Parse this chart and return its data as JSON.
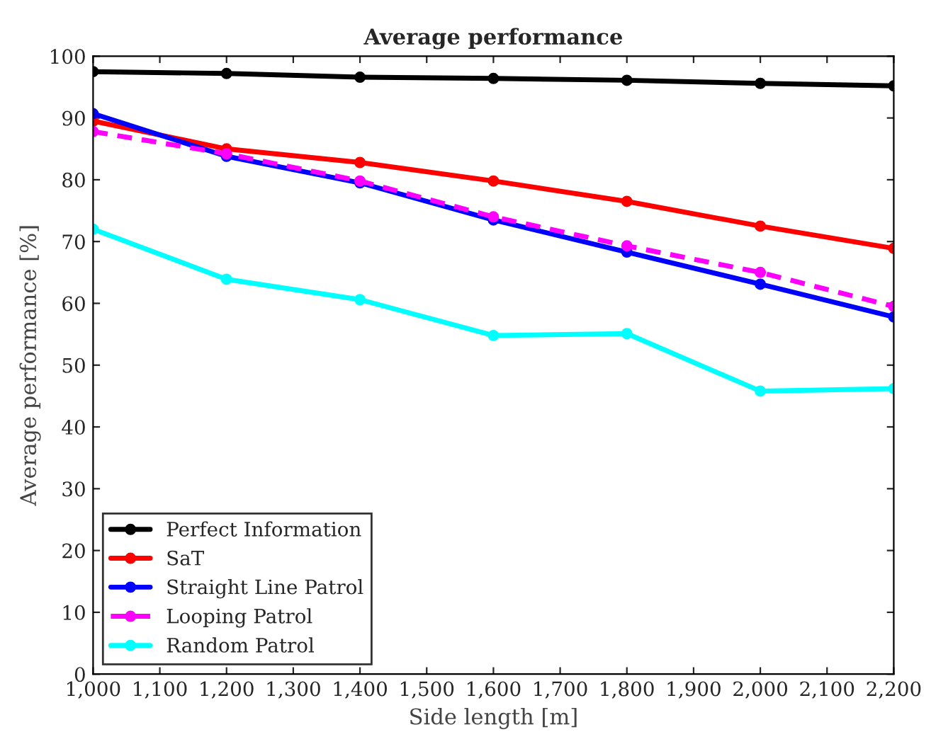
{
  "chart_data": {
    "type": "line",
    "title": "Average performance",
    "xlabel": "Side length [m]",
    "ylabel": "Average performance [%]",
    "x": [
      1000,
      1200,
      1400,
      1600,
      1800,
      2000,
      2200
    ],
    "series": [
      {
        "name": "Perfect Information",
        "color": "#000000",
        "values": [
          97.5,
          97.2,
          96.6,
          96.4,
          96.1,
          95.6,
          95.2
        ]
      },
      {
        "name": "SaT",
        "color": "#ff0000",
        "values": [
          89.5,
          85,
          82.8,
          79.8,
          76.5,
          72.5,
          68.9
        ]
      },
      {
        "name": "Straight Line Patrol",
        "color": "#0000ff",
        "values": [
          90.7,
          83.8,
          79.5,
          73.5,
          68.3,
          63.1,
          57.8
        ]
      },
      {
        "name": "Looping Patrol",
        "color": "#ff00ff",
        "values": [
          87.8,
          84.2,
          79.8,
          74,
          69.3,
          65,
          59.5
        ],
        "line_style": "dashed"
      },
      {
        "name": "Random Patrol",
        "color": "#00ffff",
        "values": [
          72,
          63.9,
          60.6,
          54.8,
          55.1,
          45.8,
          46.2
        ]
      }
    ],
    "xlim": [
      1000,
      2200
    ],
    "xticks": [
      {
        "value": 1000,
        "label": "1,000"
      },
      {
        "value": 1100,
        "label": "1,100"
      },
      {
        "value": 1200,
        "label": "1,200"
      },
      {
        "value": 1300,
        "label": "1,300"
      },
      {
        "value": 1400,
        "label": "1,400"
      },
      {
        "value": 1500,
        "label": "1,500"
      },
      {
        "value": 1600,
        "label": "1,600"
      },
      {
        "value": 1700,
        "label": "1,700"
      },
      {
        "value": 1800,
        "label": "1,800"
      },
      {
        "value": 1900,
        "label": "1,900"
      },
      {
        "value": 2000,
        "label": "2,000"
      },
      {
        "value": 2100,
        "label": "2,100"
      },
      {
        "value": 2200,
        "label": "2,200"
      }
    ],
    "ylim": [
      0,
      100
    ],
    "yticks": [
      0,
      10,
      20,
      30,
      40,
      50,
      60,
      70,
      80,
      90,
      100
    ],
    "legend": "bottom left",
    "marker": "circle",
    "line_style": "solid",
    "grid": false
  }
}
